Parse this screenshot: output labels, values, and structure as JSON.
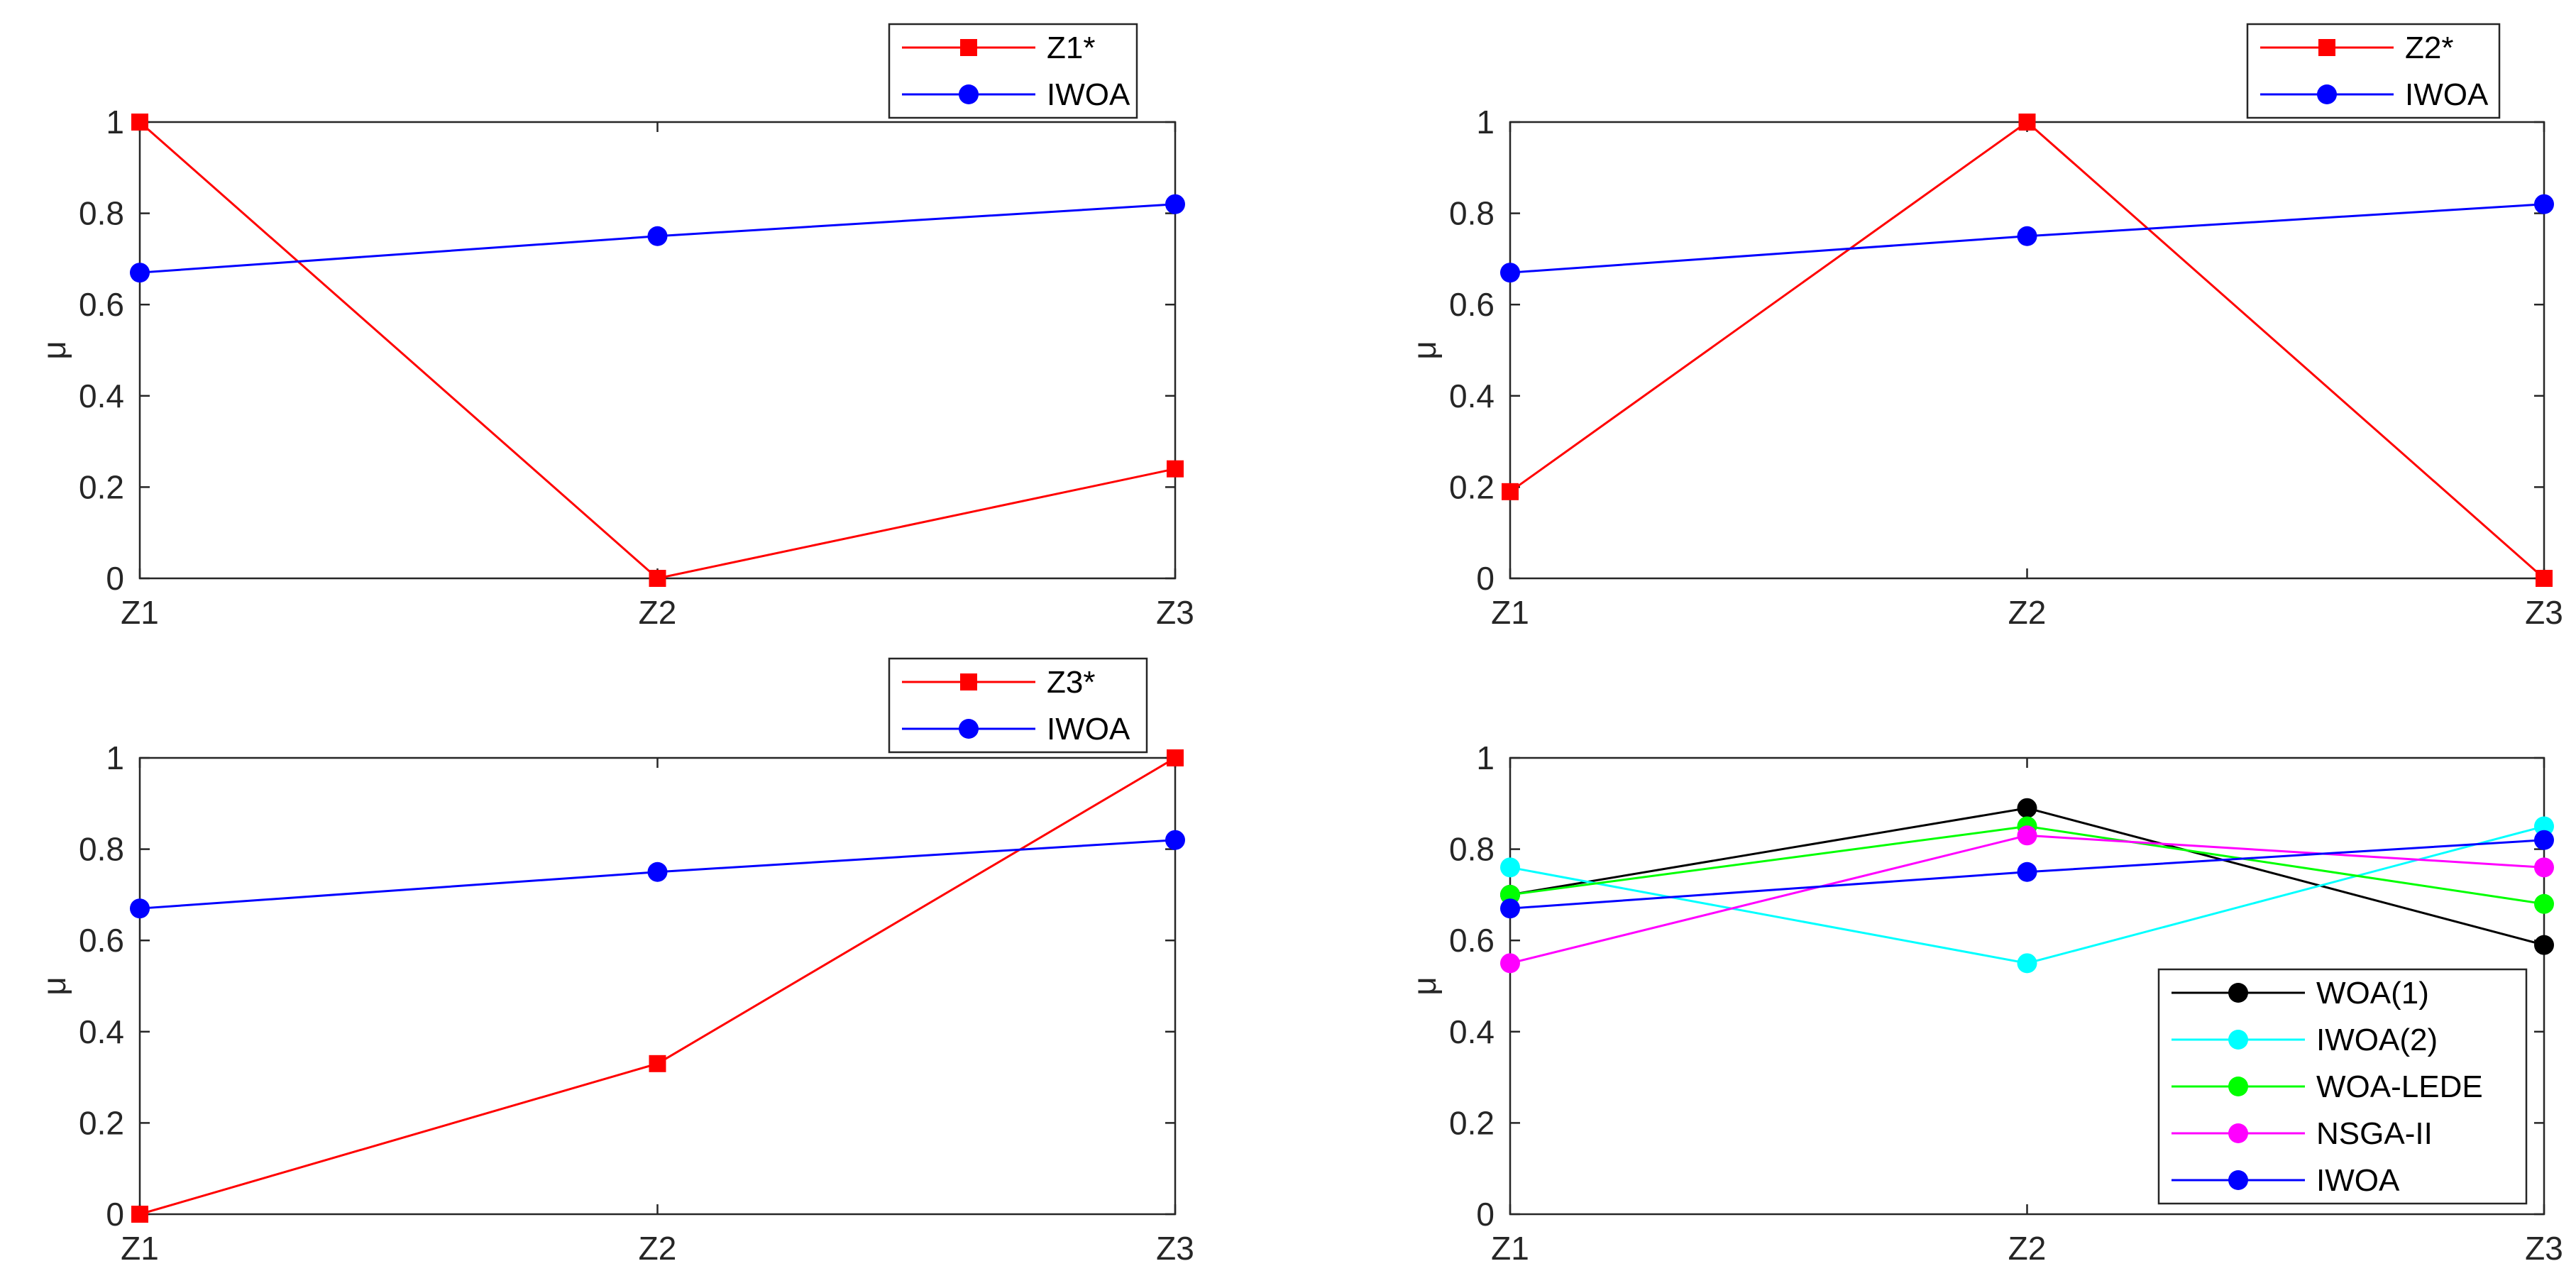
{
  "chart_data": [
    {
      "type": "line",
      "title": "",
      "xlabel": "",
      "ylabel": "μ",
      "categories": [
        "Z1",
        "Z2",
        "Z3"
      ],
      "ylim": [
        0,
        1
      ],
      "yticks": [
        "0",
        "0.2",
        "0.4",
        "0.6",
        "0.8",
        "1"
      ],
      "legend_position": "top-right-outside",
      "series": [
        {
          "name": "Z1*",
          "color": "#ff0000",
          "marker": "square",
          "values": [
            1.0,
            0.0,
            0.24
          ]
        },
        {
          "name": "IWOA",
          "color": "#0000ff",
          "marker": "circle",
          "values": [
            0.67,
            0.75,
            0.82
          ]
        }
      ]
    },
    {
      "type": "line",
      "title": "",
      "xlabel": "",
      "ylabel": "μ",
      "categories": [
        "Z1",
        "Z2",
        "Z3"
      ],
      "ylim": [
        0,
        1
      ],
      "yticks": [
        "0",
        "0.2",
        "0.4",
        "0.6",
        "0.8",
        "1"
      ],
      "legend_position": "top-right-outside",
      "series": [
        {
          "name": "Z2*",
          "color": "#ff0000",
          "marker": "square",
          "values": [
            0.19,
            1.0,
            0.0
          ]
        },
        {
          "name": "IWOA",
          "color": "#0000ff",
          "marker": "circle",
          "values": [
            0.67,
            0.75,
            0.82
          ]
        }
      ]
    },
    {
      "type": "line",
      "title": "",
      "xlabel": "",
      "ylabel": "μ",
      "categories": [
        "Z1",
        "Z2",
        "Z3"
      ],
      "ylim": [
        0,
        1
      ],
      "yticks": [
        "0",
        "0.2",
        "0.4",
        "0.6",
        "0.8",
        "1"
      ],
      "legend_position": "top-right-outside",
      "series": [
        {
          "name": "Z3*",
          "color": "#ff0000",
          "marker": "square",
          "values": [
            0.0,
            0.33,
            1.0
          ]
        },
        {
          "name": "IWOA",
          "color": "#0000ff",
          "marker": "circle",
          "values": [
            0.67,
            0.75,
            0.82
          ]
        }
      ]
    },
    {
      "type": "line",
      "title": "",
      "xlabel": "",
      "ylabel": "μ",
      "categories": [
        "Z1",
        "Z2",
        "Z3"
      ],
      "ylim": [
        0,
        1
      ],
      "yticks": [
        "0",
        "0.2",
        "0.4",
        "0.6",
        "0.8",
        "1"
      ],
      "legend_position": "bottom-right-inside",
      "series": [
        {
          "name": "WOA(1)",
          "color": "#000000",
          "marker": "circle",
          "values": [
            0.7,
            0.89,
            0.59
          ]
        },
        {
          "name": "IWOA(2)",
          "color": "#00ffff",
          "marker": "circle",
          "values": [
            0.76,
            0.55,
            0.85
          ]
        },
        {
          "name": "WOA-LEDE",
          "color": "#00ff00",
          "marker": "circle",
          "values": [
            0.7,
            0.85,
            0.68
          ]
        },
        {
          "name": "NSGA-II",
          "color": "#ff00ff",
          "marker": "circle",
          "values": [
            0.55,
            0.83,
            0.76
          ]
        },
        {
          "name": "IWOA",
          "color": "#0000ff",
          "marker": "circle",
          "values": [
            0.67,
            0.75,
            0.82
          ]
        }
      ]
    }
  ]
}
